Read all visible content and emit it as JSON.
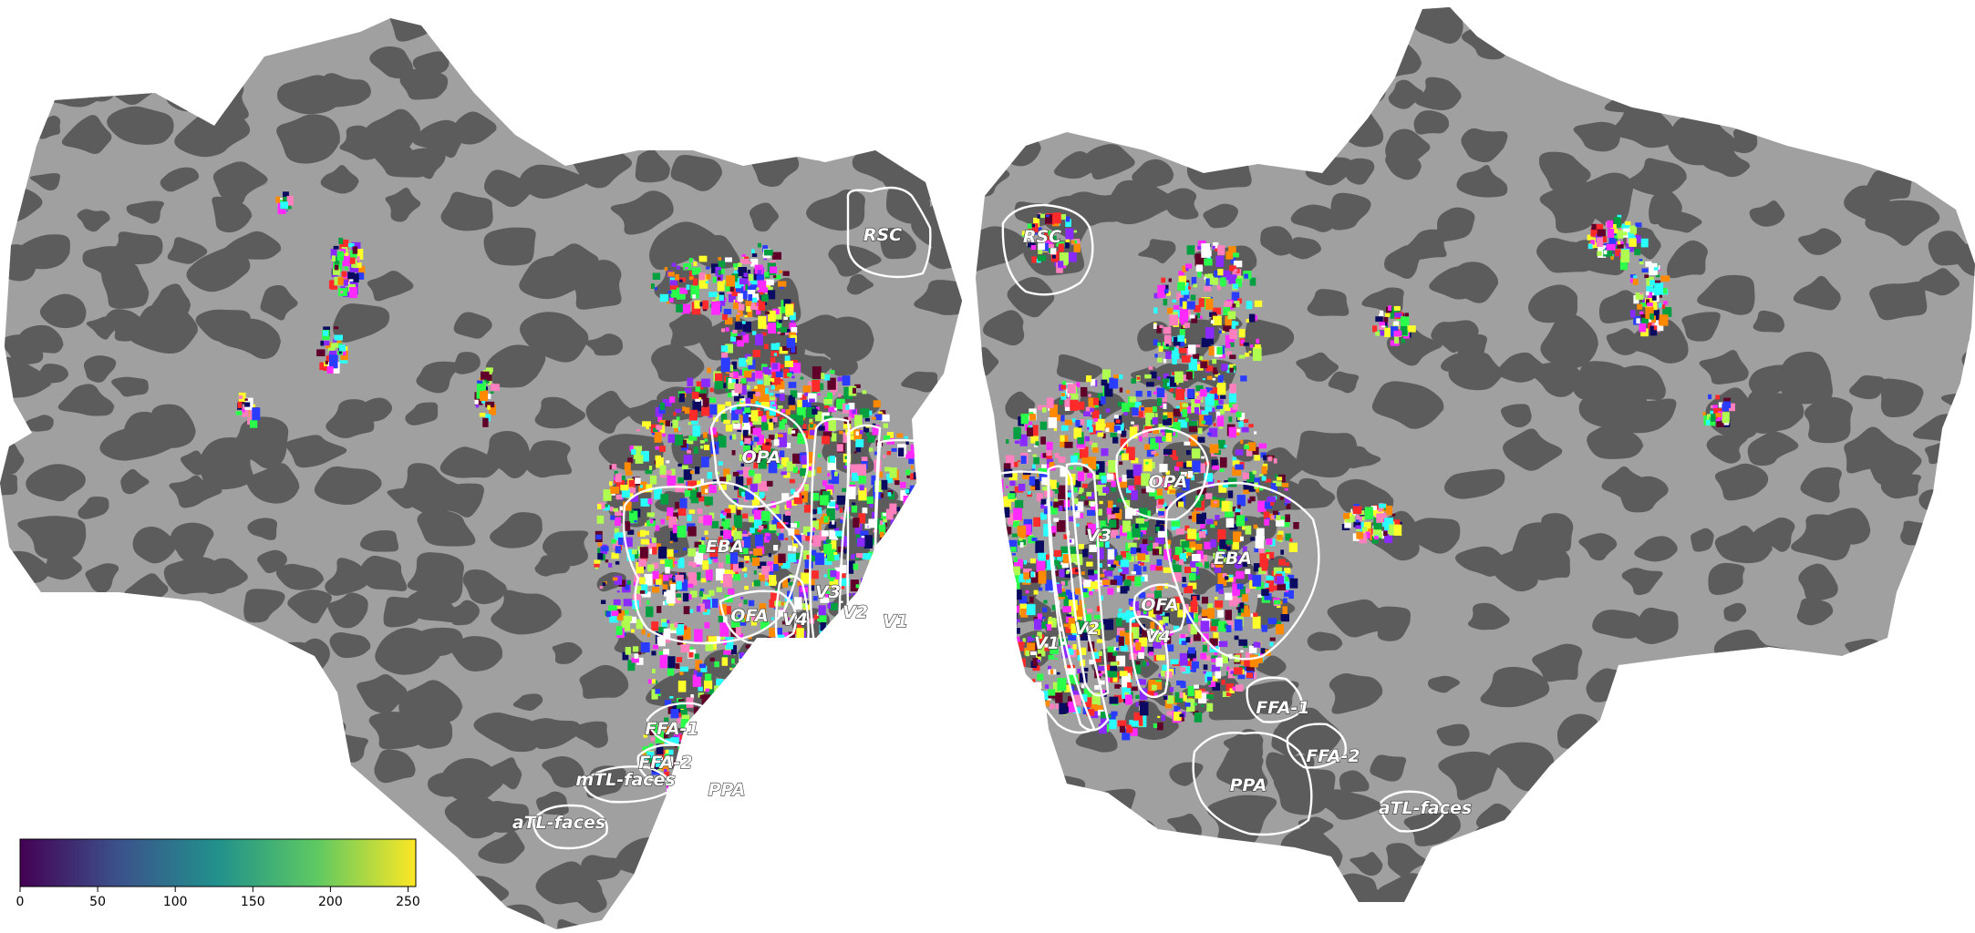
{
  "colors": {
    "sulcus": "#5c5c5c",
    "gyrus": "#a0a0a0",
    "roi_outline": "#ffffff",
    "colorbar_stops": [
      "#440154",
      "#3b528b",
      "#21918c",
      "#5ec962",
      "#fde725"
    ]
  },
  "rois": {
    "left_hemisphere": [
      "RSC",
      "OPA",
      "EBA",
      "OFA",
      "V4",
      "V3",
      "V2",
      "V1",
      "FFA-1",
      "FFA-2",
      "mTL-faces",
      "PPA",
      "aTL-faces"
    ],
    "right_hemisphere": [
      "RSC",
      "OPA",
      "EBA",
      "V3",
      "OFA",
      "V4",
      "V2",
      "V1",
      "FFA-1",
      "FFA-2",
      "PPA",
      "aTL-faces"
    ]
  },
  "colorbar": {
    "colormap": "viridis",
    "range": [
      0,
      255
    ],
    "ticks": [
      "0",
      "50",
      "100",
      "150",
      "200",
      "250"
    ]
  }
}
